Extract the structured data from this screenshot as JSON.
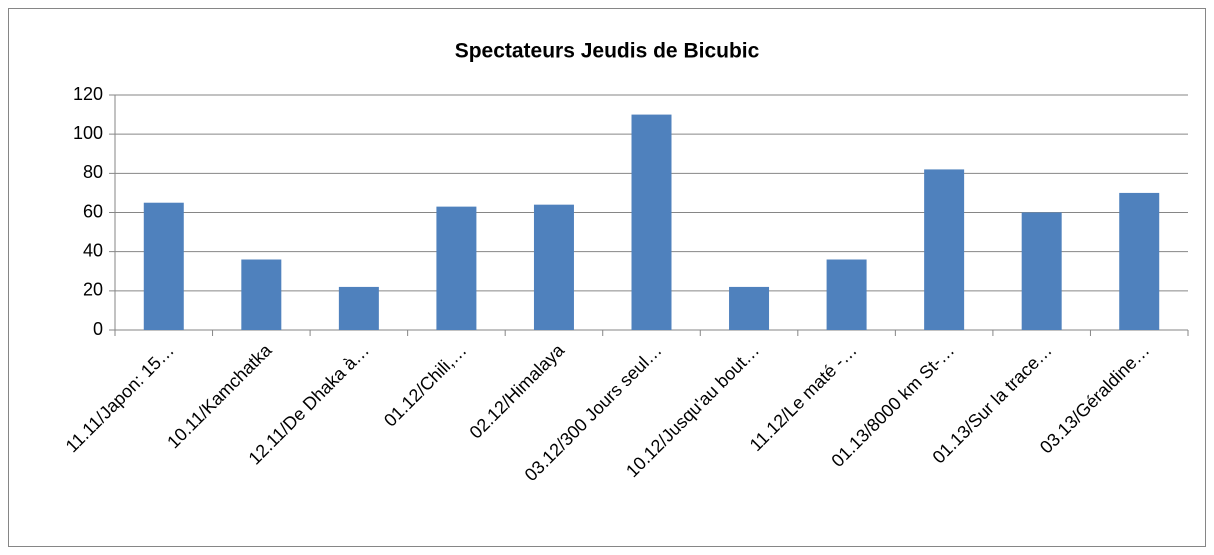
{
  "chart_data": {
    "type": "bar",
    "title": "Spectateurs Jeudis de Bicubic",
    "categories": [
      "11.11/Japon: 15…",
      "10.11/Kamchatka",
      "12.11/De Dhaka à…",
      "01.12/Chili,…",
      "02.12/Himalaya",
      "03.12/300 Jours seul…",
      "10.12/Jusqu'au bout…",
      "11.12/Le maté -…",
      "01.13/8000 km St-…",
      "01.13/Sur la trace…",
      "03.13/Géraldine…"
    ],
    "values": [
      65,
      36,
      22,
      63,
      64,
      110,
      22,
      36,
      82,
      60,
      70
    ],
    "color": "#4f81bd",
    "ylim": [
      0,
      120
    ],
    "yticks": [
      0,
      20,
      40,
      60,
      80,
      100,
      120
    ],
    "grid": true
  }
}
